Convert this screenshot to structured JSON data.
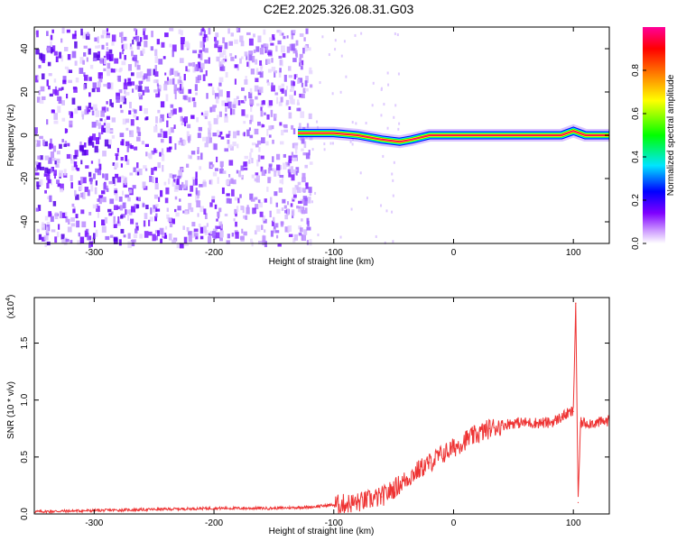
{
  "title": "C2E2.2025.326.08.31.G03",
  "chart_data": [
    {
      "type": "heatmap",
      "xlabel": "Height of straight line (km)",
      "ylabel": "Frequency (Hz)",
      "xlim": [
        -350,
        130
      ],
      "ylim": [
        -50,
        50
      ],
      "xticks": [
        -300,
        -200,
        -100,
        0,
        100
      ],
      "yticks": [
        -40,
        -20,
        0,
        20,
        40
      ],
      "colorbar": {
        "label": "Normalized spectral amplitude",
        "range": [
          0,
          1
        ],
        "ticks": [
          "0.0",
          "0.2",
          "0.4",
          "0.6",
          "0.8"
        ],
        "tick_values": [
          0,
          0.2,
          0.4,
          0.6,
          0.8
        ],
        "colors": [
          "#ffffff",
          "#cc99ff",
          "#7f00ff",
          "#0000ff",
          "#00e5ff",
          "#00ff00",
          "#ffff00",
          "#ff8000",
          "#ff0000",
          "#ff00aa"
        ]
      },
      "noise_region_x": [
        -350,
        -120
      ],
      "signal_start_x": -130,
      "signal_line": [
        {
          "x": -130,
          "y": 1
        },
        {
          "x": -100,
          "y": 1
        },
        {
          "x": -80,
          "y": 0
        },
        {
          "x": -60,
          "y": -2
        },
        {
          "x": -45,
          "y": -3
        },
        {
          "x": -35,
          "y": -2
        },
        {
          "x": -20,
          "y": 0
        },
        {
          "x": 0,
          "y": 0
        },
        {
          "x": 60,
          "y": 0
        },
        {
          "x": 90,
          "y": 0
        },
        {
          "x": 100,
          "y": 2
        },
        {
          "x": 110,
          "y": 0
        },
        {
          "x": 130,
          "y": 0
        }
      ]
    },
    {
      "type": "line",
      "xlabel": "Height of straight line (km)",
      "ylabel": "SNR (10 * v/v)",
      "scale_label": "(x10",
      "scale_exponent": "4",
      "scale_suffix": ")",
      "xlim": [
        -350,
        130
      ],
      "ylim": [
        0,
        1.9
      ],
      "xticks": [
        -300,
        -200,
        -100,
        0,
        100
      ],
      "yticks": [
        "0.0",
        "0.5",
        "1.0",
        "1.5"
      ],
      "ytick_values": [
        0,
        0.5,
        1.0,
        1.5
      ],
      "color": "#ee3333",
      "series": [
        {
          "x": [
            -350,
            -300,
            -250,
            -200,
            -150,
            -120,
            -100,
            -80,
            -60,
            -50,
            -40,
            -30,
            -20,
            -10,
            0,
            10,
            20,
            30,
            40,
            50,
            60,
            70,
            80,
            85,
            90,
            95,
            100,
            102,
            104,
            106,
            110,
            120,
            130
          ],
          "y": [
            0.02,
            0.03,
            0.04,
            0.05,
            0.05,
            0.06,
            0.08,
            0.1,
            0.15,
            0.22,
            0.3,
            0.38,
            0.45,
            0.52,
            0.58,
            0.65,
            0.7,
            0.75,
            0.78,
            0.8,
            0.8,
            0.8,
            0.8,
            0.82,
            0.85,
            0.88,
            0.9,
            1.85,
            0.1,
            0.8,
            0.8,
            0.8,
            0.82
          ]
        }
      ]
    }
  ]
}
